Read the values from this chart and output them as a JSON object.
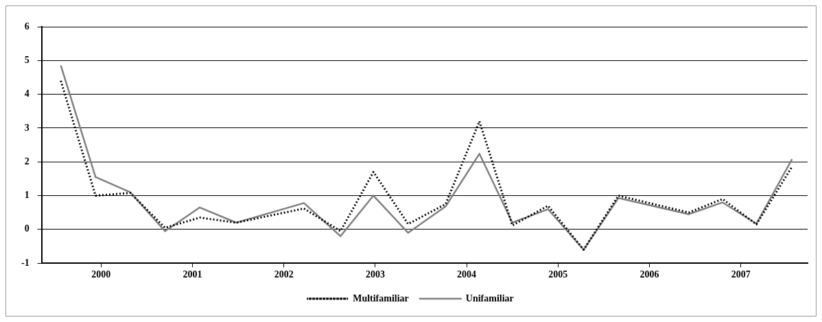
{
  "chart_data": {
    "type": "line",
    "x": [
      1999.56,
      1999.94,
      2000.32,
      2000.7,
      2001.08,
      2001.48,
      2002.22,
      2002.62,
      2002.98,
      2003.36,
      2003.77,
      2004.14,
      2004.5,
      2004.89,
      2005.28,
      2005.66,
      2006.43,
      2006.8,
      2007.17,
      2007.56
    ],
    "series": [
      {
        "name": "Multifamiliar",
        "color": "#000000",
        "line_style": "dotted",
        "values": [
          4.4,
          1.0,
          1.08,
          0.05,
          0.35,
          0.2,
          0.62,
          -0.05,
          1.7,
          0.16,
          0.75,
          3.2,
          0.12,
          0.7,
          -0.6,
          1.0,
          0.5,
          0.9,
          0.15,
          1.86
        ]
      },
      {
        "name": "Unifamiliar",
        "color": "#808080",
        "line_style": "solid",
        "values": [
          4.85,
          1.55,
          1.1,
          -0.05,
          0.65,
          0.2,
          0.78,
          -0.2,
          1.0,
          -0.1,
          0.68,
          2.24,
          0.2,
          0.6,
          -0.6,
          0.93,
          0.45,
          0.8,
          0.17,
          2.08
        ]
      }
    ],
    "xlim": [
      1999.35,
      2007.73
    ],
    "xticks": [
      2000,
      2001,
      2002,
      2003,
      2004,
      2005,
      2006,
      2007
    ],
    "ylim": [
      -1,
      6
    ],
    "yticks": [
      -1,
      0,
      1,
      2,
      3,
      4,
      5,
      6
    ],
    "grid": "y",
    "legend": "bottom",
    "marker": "none"
  }
}
